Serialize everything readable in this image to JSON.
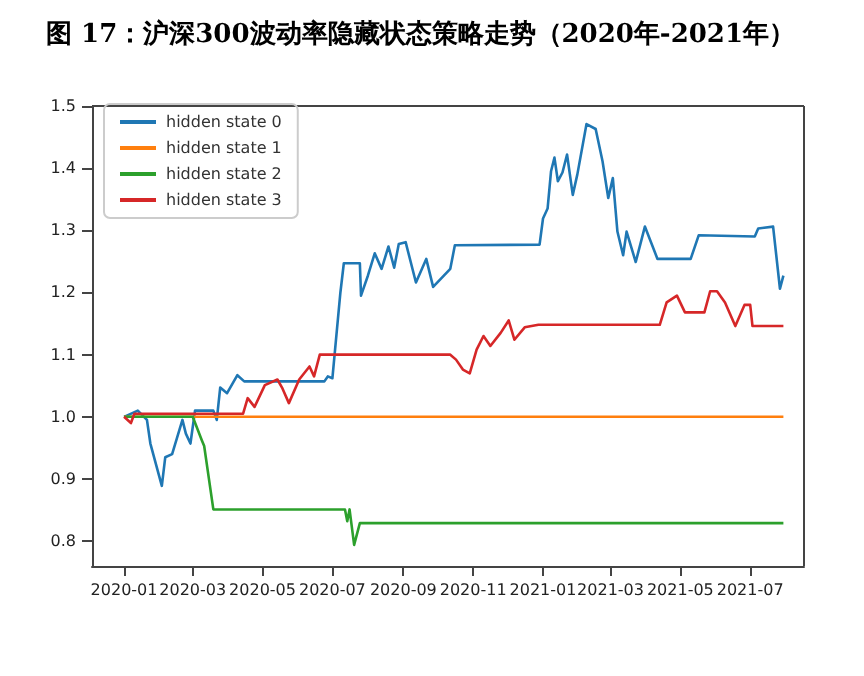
{
  "chart_data": {
    "type": "line",
    "title": "图 17：沪深300波动率隐藏状态策略走势（2020年-2021年）",
    "xlim": [
      "2019-12-04",
      "2021-08-17"
    ],
    "xticks": [
      "2020-01",
      "2020-03",
      "2020-05",
      "2020-07",
      "2020-09",
      "2020-11",
      "2021-01",
      "2021-03",
      "2021-05",
      "2021-07"
    ],
    "ylim": [
      0.76,
      1.5
    ],
    "yticks": [
      0.8,
      0.9,
      {
        "value": 1.0,
        "label": "1.0"
      },
      1.1,
      1.2,
      1.3,
      1.4,
      1.5
    ],
    "grid": false,
    "legend": "top left",
    "line_style": "solid",
    "marker": "none",
    "series": [
      {
        "name": "hidden state 0",
        "color": "#1f77b4",
        "x": [
          "2020-01-01",
          "2020-01-13",
          "2020-01-21",
          "2020-01-24",
          "2020-02-03",
          "2020-02-06",
          "2020-02-12",
          "2020-02-21",
          "2020-02-24",
          "2020-02-28",
          "2020-03-03",
          "2020-03-19",
          "2020-03-22",
          "2020-03-25",
          "2020-03-31",
          "2020-04-09",
          "2020-04-15",
          "2020-06-24",
          "2020-06-27",
          "2020-07-01",
          "2020-07-08",
          "2020-07-11",
          "2020-07-25",
          "2020-07-26",
          "2020-08-01",
          "2020-08-07",
          "2020-08-13",
          "2020-08-19",
          "2020-08-24",
          "2020-08-28",
          "2020-09-03",
          "2020-09-12",
          "2020-09-21",
          "2020-09-27",
          "2020-10-12",
          "2020-10-16",
          "2020-12-29",
          "2021-01-01",
          "2021-01-05",
          "2021-01-08",
          "2021-01-11",
          "2021-01-14",
          "2021-01-18",
          "2021-01-22",
          "2021-01-27",
          "2021-01-31",
          "2021-02-08",
          "2021-02-16",
          "2021-02-22",
          "2021-02-27",
          "2021-03-03",
          "2021-03-07",
          "2021-03-12",
          "2021-03-15",
          "2021-03-23",
          "2021-03-31",
          "2021-04-11",
          "2021-05-10",
          "2021-05-17",
          "2021-07-05",
          "2021-07-08",
          "2021-07-21",
          "2021-07-27",
          "2021-07-30"
        ],
        "values": [
          1.0,
          1.01,
          0.995,
          0.957,
          0.889,
          0.935,
          0.94,
          0.995,
          0.973,
          0.957,
          1.01,
          1.01,
          0.995,
          1.047,
          1.038,
          1.067,
          1.057,
          1.057,
          1.065,
          1.062,
          1.2,
          1.247,
          1.247,
          1.195,
          1.227,
          1.263,
          1.238,
          1.274,
          1.24,
          1.278,
          1.281,
          1.216,
          1.254,
          1.209,
          1.238,
          1.276,
          1.277,
          1.319,
          1.335,
          1.395,
          1.417,
          1.379,
          1.393,
          1.422,
          1.357,
          1.39,
          1.471,
          1.463,
          1.411,
          1.352,
          1.384,
          1.298,
          1.26,
          1.298,
          1.249,
          1.306,
          1.254,
          1.254,
          1.292,
          1.29,
          1.303,
          1.306,
          1.206,
          1.227
        ]
      },
      {
        "name": "hidden state 1",
        "color": "#ff7f0e",
        "x": [
          "2020-01-01",
          "2021-07-30"
        ],
        "values": [
          1.0,
          1.0
        ]
      },
      {
        "name": "hidden state 2",
        "color": "#2ca02c",
        "x": [
          "2020-01-01",
          "2020-03-01",
          "2020-03-09",
          "2020-03-11",
          "2020-03-19",
          "2020-07-12",
          "2020-07-14",
          "2020-07-16",
          "2020-07-20",
          "2020-07-25",
          "2021-07-30"
        ],
        "values": [
          1.0,
          1.0,
          0.962,
          0.953,
          0.851,
          0.851,
          0.832,
          0.851,
          0.794,
          0.829,
          0.829
        ]
      },
      {
        "name": "hidden state 3",
        "color": "#d62728",
        "x": [
          "2020-01-01",
          "2020-01-07",
          "2020-01-10",
          "2020-04-14",
          "2020-04-18",
          "2020-04-24",
          "2020-05-03",
          "2020-05-14",
          "2020-05-18",
          "2020-05-24",
          "2020-06-02",
          "2020-06-11",
          "2020-06-15",
          "2020-06-20",
          "2020-10-12",
          "2020-10-17",
          "2020-10-23",
          "2020-10-29",
          "2020-11-04",
          "2020-11-10",
          "2020-11-16",
          "2020-11-25",
          "2020-12-02",
          "2020-12-07",
          "2020-12-16",
          "2020-12-28",
          "2021-04-13",
          "2021-04-19",
          "2021-04-28",
          "2021-05-05",
          "2021-05-22",
          "2021-05-27",
          "2021-06-02",
          "2021-06-09",
          "2021-06-18",
          "2021-06-26",
          "2021-07-01",
          "2021-07-03",
          "2021-07-30"
        ],
        "values": [
          1.0,
          0.99,
          1.005,
          1.005,
          1.03,
          1.016,
          1.051,
          1.06,
          1.047,
          1.022,
          1.06,
          1.081,
          1.065,
          1.1,
          1.1,
          1.092,
          1.076,
          1.07,
          1.108,
          1.13,
          1.114,
          1.135,
          1.155,
          1.124,
          1.144,
          1.148,
          1.148,
          1.184,
          1.195,
          1.168,
          1.168,
          1.202,
          1.202,
          1.184,
          1.146,
          1.18,
          1.18,
          1.146,
          1.146
        ]
      }
    ]
  }
}
